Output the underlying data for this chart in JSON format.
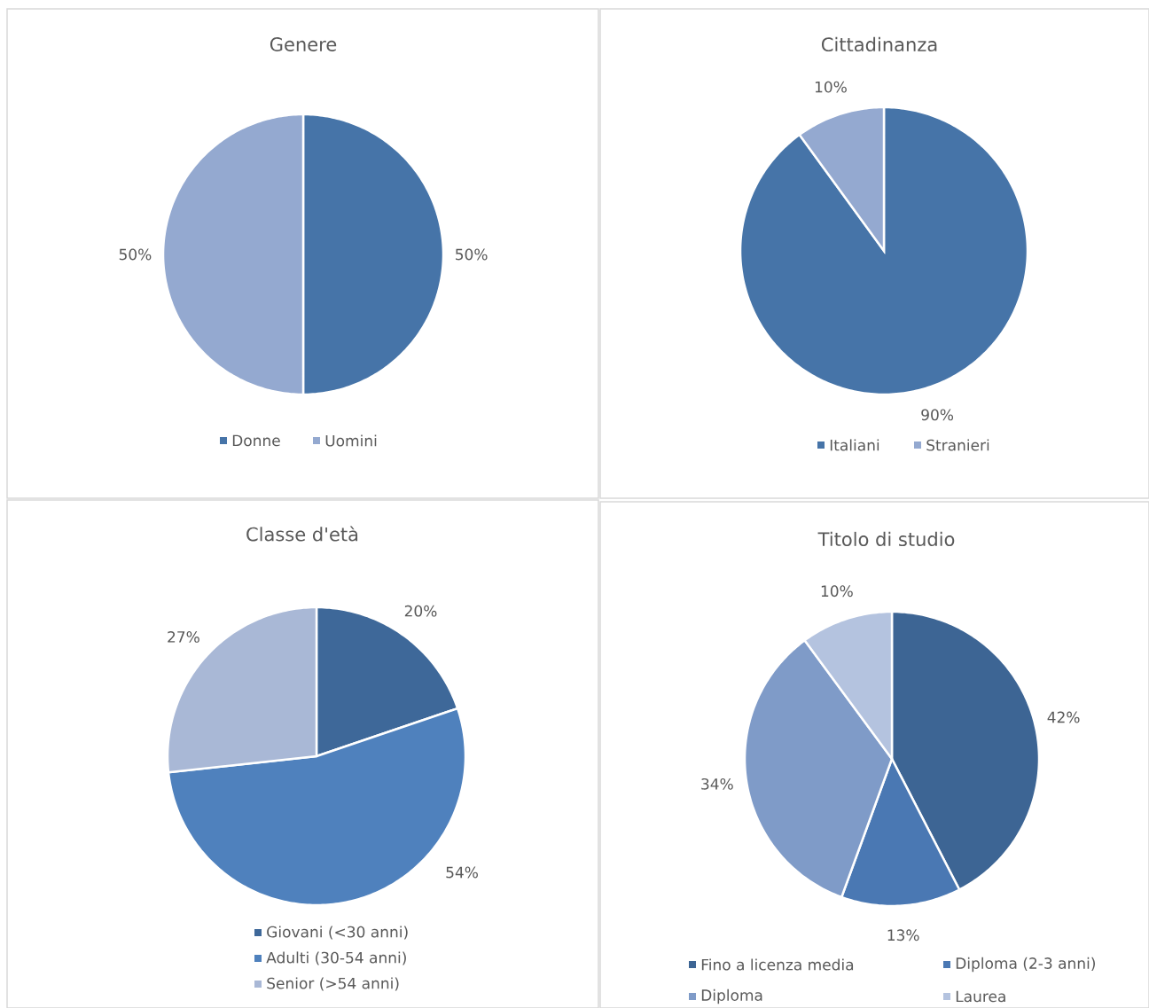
{
  "chart_data": [
    {
      "type": "pie",
      "title": "Genere",
      "categories": [
        "Donne",
        "Uomini"
      ],
      "values": [
        50,
        50
      ],
      "value_labels": [
        "50%",
        "50%"
      ],
      "colors": [
        "#4674a8",
        "#94a9d0"
      ],
      "legend": "bottom"
    },
    {
      "type": "pie",
      "title": "Cittadinanza",
      "categories": [
        "Italiani",
        "Stranieri"
      ],
      "values": [
        90,
        10
      ],
      "value_labels": [
        "90%",
        "10%"
      ],
      "colors": [
        "#4674a8",
        "#94a9d0"
      ],
      "legend": "bottom"
    },
    {
      "type": "pie",
      "title": "Classe d'età",
      "categories": [
        "Giovani (<30 anni)",
        "Adulti (30-54 anni)",
        "Senior (>54 anni)"
      ],
      "values": [
        20,
        54,
        27
      ],
      "value_labels": [
        "20%",
        "54%",
        "27%"
      ],
      "colors": [
        "#3e6899",
        "#4f81bd",
        "#a9b8d6"
      ],
      "legend": "bottom"
    },
    {
      "type": "pie",
      "title": "Titolo di studio",
      "categories": [
        "Fino a licenza media",
        "Diploma (2-3 anni)",
        "Diploma",
        "Laurea"
      ],
      "values": [
        42,
        13,
        34,
        10
      ],
      "value_labels": [
        "42%",
        "13%",
        "34%",
        "10%"
      ],
      "colors": [
        "#3d6594",
        "#4a78b3",
        "#7f9bc8",
        "#b4c3df"
      ],
      "legend": "bottom"
    }
  ]
}
